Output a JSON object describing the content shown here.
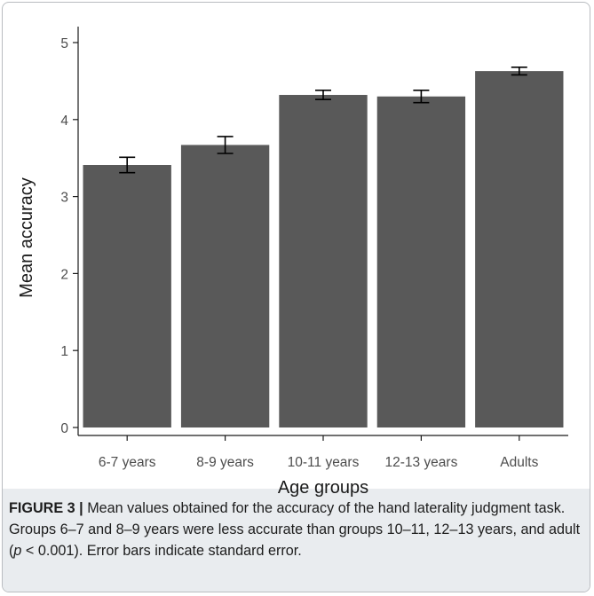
{
  "chart_data": {
    "type": "bar",
    "categories": [
      "6-7 years",
      "8-9 years",
      "10-11 years",
      "12-13 years",
      "Adults"
    ],
    "values": [
      3.41,
      3.67,
      4.32,
      4.3,
      4.63
    ],
    "errors": [
      0.1,
      0.11,
      0.06,
      0.08,
      0.05
    ],
    "xlabel": "Age groups",
    "ylabel": "Mean accuracy",
    "ylim": [
      0,
      5.3
    ],
    "yticks": [
      "0",
      "1",
      "2",
      "3",
      "4",
      "5"
    ],
    "bar_color": "#595959",
    "grid": false
  },
  "caption": {
    "label": "FIGURE 3",
    "separator": " | ",
    "text": "Mean values obtained for the accuracy of the hand laterality judgment task. Groups 6–7 and 8–9 years were less accurate than groups 10–11, 12–13 years, and adult (p < 0.001). Error bars indicate standard error."
  }
}
